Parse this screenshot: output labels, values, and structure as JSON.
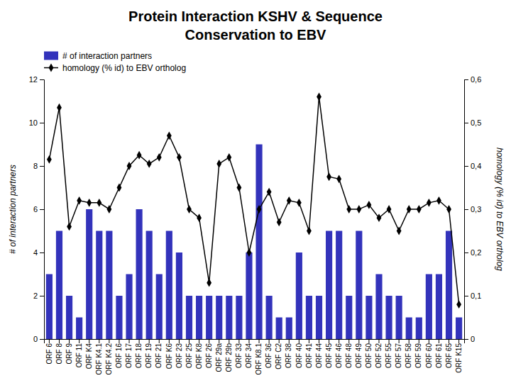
{
  "chart_data": {
    "type": "bar",
    "title": "Protein Interaction KSHV & Sequence",
    "subtitle": "Conservation to EBV",
    "categories": [
      "ORF 6",
      "ORF 8",
      "ORF 9",
      "ORF 11",
      "ORF K4",
      "ORF K4.1",
      "ORF K4.2",
      "ORF 16",
      "ORF 17",
      "ORF 18",
      "ORF 19",
      "ORF 21",
      "ORF K6",
      "ORF 23",
      "ORF 25",
      "ORF K8",
      "ORF 26",
      "ORF 29a",
      "ORF 29b",
      "ORF 33",
      "ORF 34",
      "ORF K8.1",
      "ORF 36",
      "ORF C2",
      "ORF 38",
      "ORF 40",
      "ORF 41",
      "ORF 44",
      "ORF 45",
      "ORF 46",
      "ORF 48",
      "ORF 49",
      "ORF 50",
      "ORF 52",
      "ORF 55",
      "ORF 57",
      "ORF 58",
      "ORF 59",
      "ORF 60",
      "ORF 61",
      "ORF 65",
      "ORF K15"
    ],
    "series": [
      {
        "name": "# of interaction partners",
        "type": "bar",
        "color": "#3333BB",
        "values": [
          3,
          5,
          2,
          1,
          6,
          5,
          5,
          2,
          3,
          6,
          5,
          3,
          5,
          4,
          2,
          2,
          2,
          2,
          2,
          2,
          4,
          9,
          2,
          1,
          1,
          4,
          2,
          2,
          5,
          5,
          2,
          5,
          2,
          3,
          2,
          2,
          1,
          1,
          3,
          3,
          5,
          1
        ]
      },
      {
        "name": "homology (% id) to EBV ortholog",
        "type": "line",
        "color": "black",
        "marker": "diamond",
        "axis": "y2",
        "values": [
          0.415,
          0.535,
          0.26,
          0.32,
          0.315,
          0.315,
          0.3,
          0.35,
          0.4,
          0.425,
          0.405,
          0.42,
          0.47,
          0.42,
          0.3,
          0.28,
          0.13,
          0.405,
          0.42,
          0.35,
          0.2,
          0.3,
          0.34,
          0.27,
          0.32,
          0.315,
          0.25,
          0.56,
          0.375,
          0.37,
          0.3,
          0.3,
          0.31,
          0.28,
          0.3,
          0.25,
          0.3,
          0.3,
          0.315,
          0.32,
          0.3,
          0.08
        ]
      }
    ],
    "ylabel": "# of interaction partners",
    "y2label": "homology (% id) to EBV ortholog",
    "ylim": [
      0,
      12
    ],
    "yticks": [
      0,
      2,
      4,
      6,
      8,
      10,
      12
    ],
    "y2lim": [
      0,
      0.6
    ],
    "y2ticks": [
      0,
      {
        "value": 0.1,
        "label": "0,1"
      },
      {
        "value": 0.2,
        "label": "0,2"
      },
      {
        "value": 0.3,
        "label": "0,3"
      },
      {
        "value": 0.4,
        "label": "0,4"
      },
      {
        "value": 0.5,
        "label": "0,5"
      },
      {
        "value": 0.6,
        "label": "0,6"
      }
    ],
    "grid": false,
    "legend": "upper left"
  }
}
